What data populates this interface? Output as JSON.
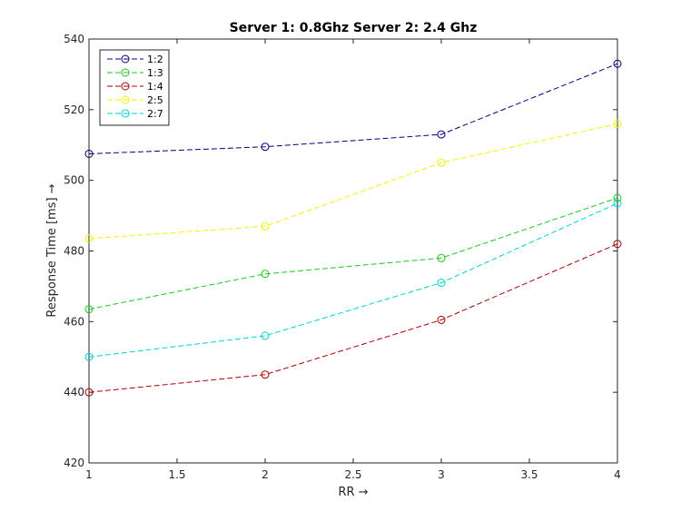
{
  "chart_data": {
    "type": "line",
    "title": "Server 1: 0.8Ghz Server 2: 2.4 Ghz",
    "xlabel": "RR →",
    "ylabel": "Response Time [ms] →",
    "xlim": [
      1,
      4
    ],
    "ylim": [
      420,
      540
    ],
    "xticks": [
      "1",
      "1.5",
      "2",
      "2.5",
      "3",
      "3.5",
      "4"
    ],
    "xtick_values": [
      1,
      1.5,
      2,
      2.5,
      3,
      3.5,
      4
    ],
    "yticks": [
      "420",
      "440",
      "460",
      "480",
      "500",
      "520",
      "540"
    ],
    "ytick_values": [
      420,
      440,
      460,
      480,
      500,
      520,
      540
    ],
    "grid": false,
    "legend_position": "top-left",
    "x": [
      1,
      2,
      3,
      4
    ],
    "series": [
      {
        "name": "1:2",
        "color": "#00007f",
        "values": [
          507.5,
          509.5,
          513,
          533
        ]
      },
      {
        "name": "1:3",
        "color": "#1ec81e",
        "values": [
          463.5,
          473.5,
          478,
          495
        ]
      },
      {
        "name": "1:4",
        "color": "#aa0000",
        "values": [
          440,
          445,
          460.5,
          482
        ]
      },
      {
        "name": "2:5",
        "color": "#f5f500",
        "values": [
          483.5,
          487,
          505,
          516
        ]
      },
      {
        "name": "2:7",
        "color": "#00d2d2",
        "values": [
          450,
          456,
          471,
          493.5
        ]
      }
    ]
  }
}
